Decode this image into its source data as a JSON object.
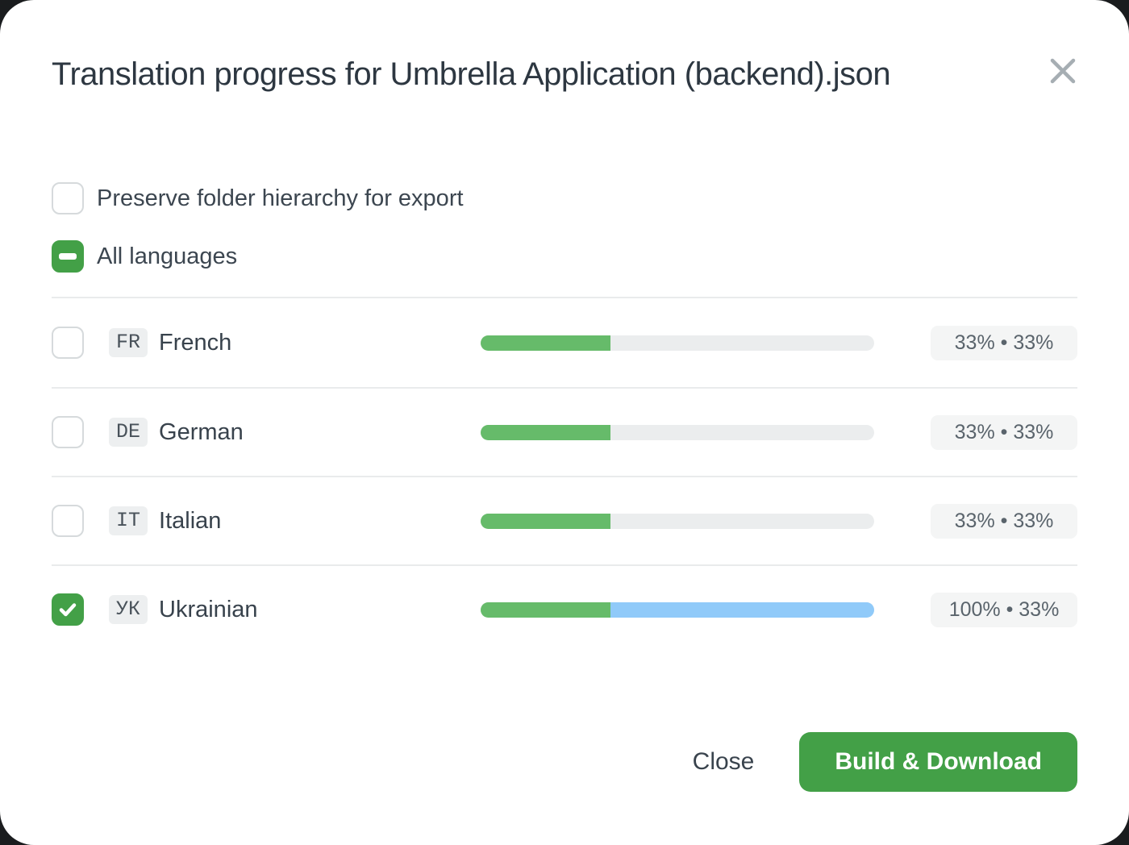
{
  "modal": {
    "title": "Translation progress for Umbrella Application (backend).json"
  },
  "options": {
    "preserve_label": "Preserve folder hierarchy for export",
    "preserve_checked": false,
    "all_languages_label": "All languages",
    "all_languages_state": "indeterminate"
  },
  "languages": [
    {
      "code": "FR",
      "name": "French",
      "checked": false,
      "translated_pct": 33,
      "approved_pct": 33,
      "stats": "33% • 33%"
    },
    {
      "code": "DE",
      "name": "German",
      "checked": false,
      "translated_pct": 33,
      "approved_pct": 33,
      "stats": "33% • 33%"
    },
    {
      "code": "IT",
      "name": "Italian",
      "checked": false,
      "translated_pct": 33,
      "approved_pct": 33,
      "stats": "33% • 33%"
    },
    {
      "code": "УК",
      "name": "Ukrainian",
      "checked": true,
      "translated_pct": 100,
      "approved_pct": 33,
      "stats": "100% • 33%"
    }
  ],
  "footer": {
    "close_label": "Close",
    "build_label": "Build & Download"
  },
  "colors": {
    "accent_green": "#43a047",
    "progress_green": "#66bb6a",
    "progress_blue": "#90caf9",
    "progress_track": "#ebedee",
    "divider": "#e9ebec",
    "title_text": "#2d3741"
  }
}
